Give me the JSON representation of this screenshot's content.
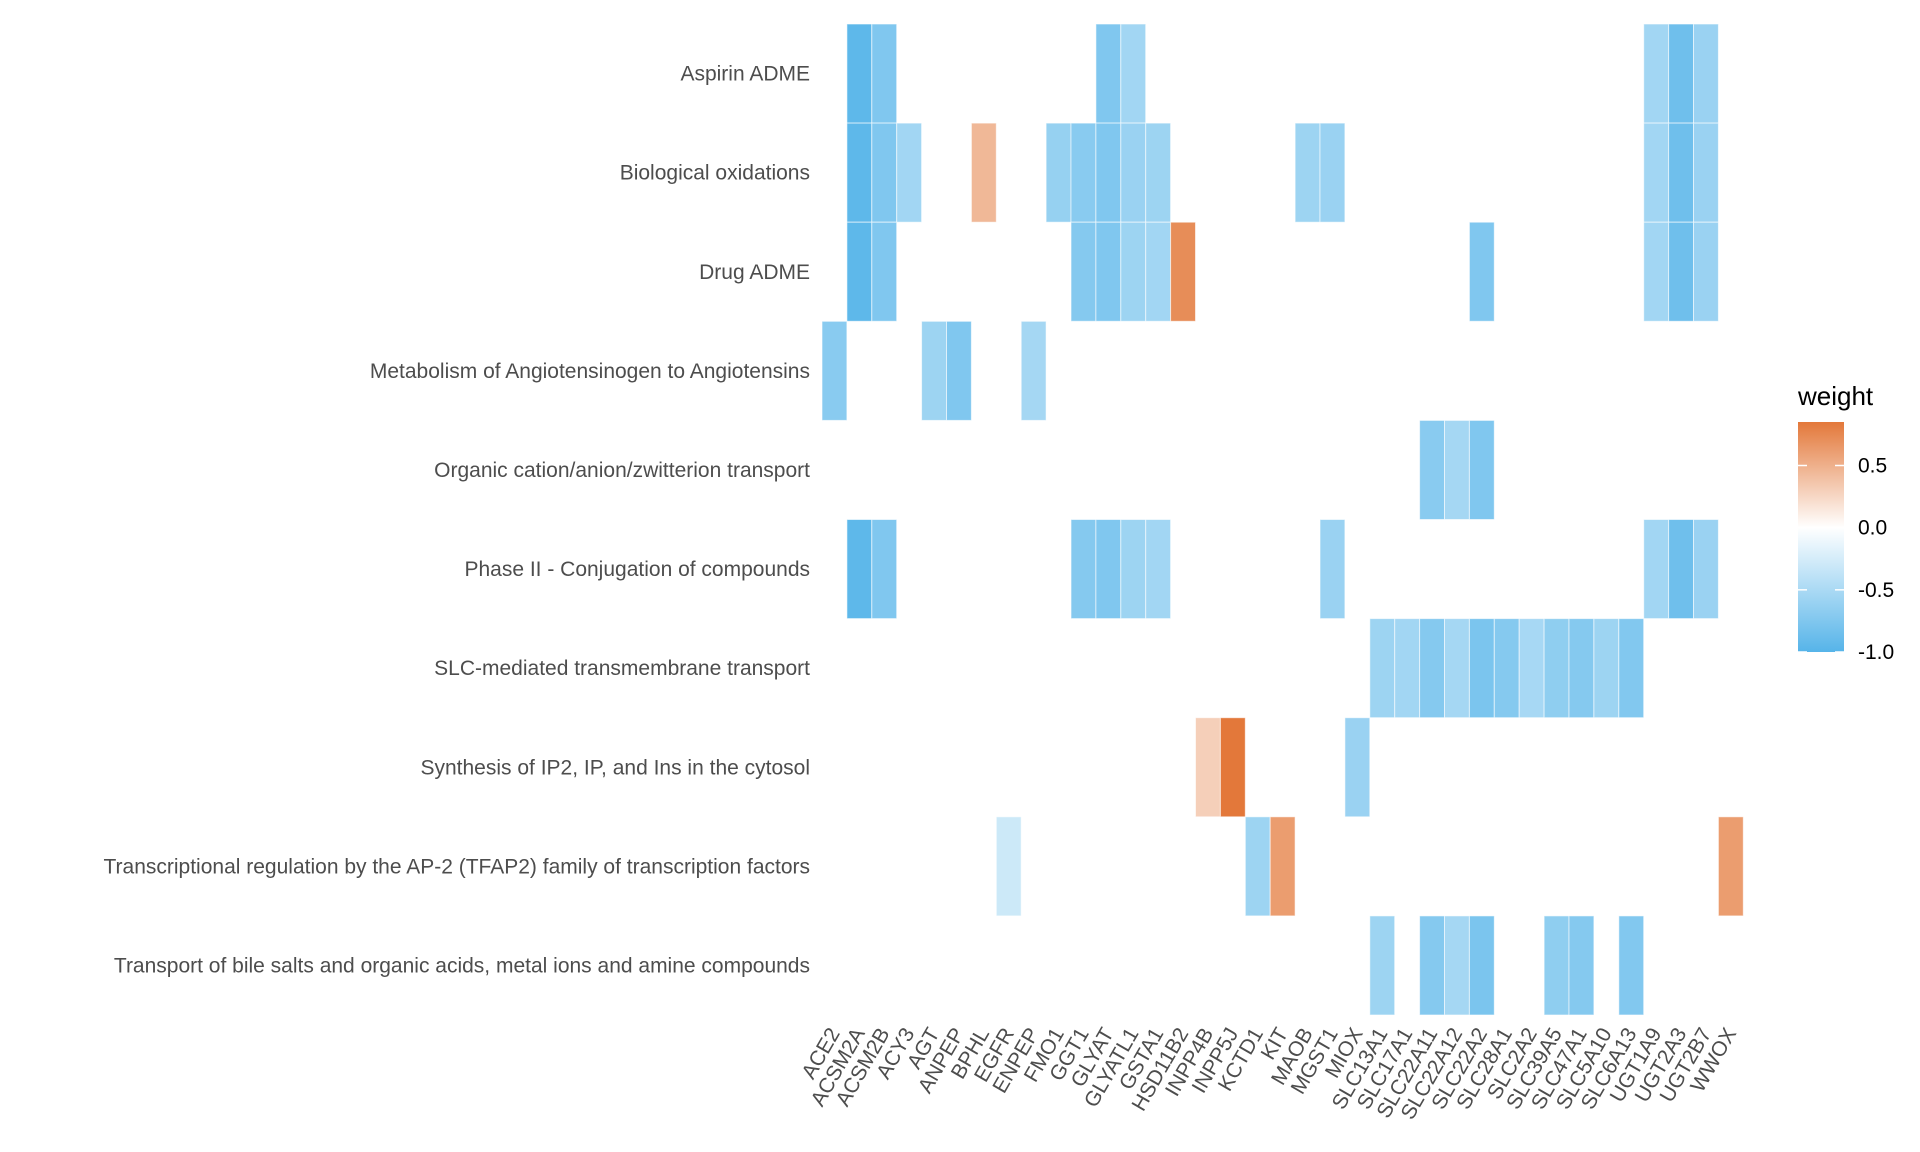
{
  "chart_data": {
    "type": "heatmap",
    "title": "",
    "xlabel": "",
    "ylabel": "",
    "x_categories": [
      "ACE2",
      "ACSM2A",
      "ACSM2B",
      "ACY3",
      "AGT",
      "ANPEP",
      "BPHL",
      "EGFR",
      "ENPEP",
      "FMO1",
      "GGT1",
      "GLYAT",
      "GLYATL1",
      "GSTA1",
      "HSD11B2",
      "INPP4B",
      "INPP5J",
      "KCTD1",
      "KIT",
      "MAOB",
      "MGST1",
      "MIOX",
      "SLC13A1",
      "SLC17A1",
      "SLC22A11",
      "SLC22A12",
      "SLC22A2",
      "SLC28A1",
      "SLC2A2",
      "SLC39A5",
      "SLC47A1",
      "SLC5A10",
      "SLC6A13",
      "UGT1A9",
      "UGT2A3",
      "UGT2B7",
      "WWOX"
    ],
    "y_categories": [
      "Aspirin ADME",
      "Biological oxidations",
      "Drug ADME",
      "Metabolism of Angiotensinogen to Angiotensins",
      "Organic cation/anion/zwitterion transport",
      "Phase II - Conjugation of compounds",
      "SLC-mediated transmembrane transport",
      "Synthesis of IP2, IP, and Ins in the cytosol",
      "Transcriptional regulation by the AP-2 (TFAP2) family of transcription factors",
      "Transport of bile salts and organic acids, metal ions and amine compounds"
    ],
    "cells": [
      {
        "y": "Aspirin ADME",
        "values": {
          "ACSM2A": -0.95,
          "ACSM2B": -0.75,
          "GLYAT": -0.75,
          "GLYATL1": -0.55,
          "UGT1A9": -0.55,
          "UGT2A3": -0.85,
          "UGT2B7": -0.6
        }
      },
      {
        "y": "Biological oxidations",
        "values": {
          "ACSM2A": -0.95,
          "ACSM2B": -0.75,
          "ACY3": -0.55,
          "BPHL": 0.45,
          "FMO1": -0.62,
          "GGT1": -0.7,
          "GLYAT": -0.75,
          "GLYATL1": -0.6,
          "GSTA1": -0.58,
          "MAOB": -0.58,
          "MGST1": -0.6,
          "UGT1A9": -0.55,
          "UGT2A3": -0.85,
          "UGT2B7": -0.6
        }
      },
      {
        "y": "Drug ADME",
        "values": {
          "ACSM2A": -0.95,
          "ACSM2B": -0.75,
          "GGT1": -0.72,
          "GLYAT": -0.75,
          "GLYATL1": -0.58,
          "GSTA1": -0.55,
          "HSD11B2": 0.72,
          "SLC22A2": -0.75,
          "UGT1A9": -0.55,
          "UGT2A3": -0.85,
          "UGT2B7": -0.6
        }
      },
      {
        "y": "Metabolism of Angiotensinogen to Angiotensins",
        "values": {
          "ACE2": -0.7,
          "AGT": -0.58,
          "ANPEP": -0.75,
          "ENPEP": -0.53
        }
      },
      {
        "y": "Organic cation/anion/zwitterion transport",
        "values": {
          "SLC22A11": -0.7,
          "SLC22A12": -0.53,
          "SLC22A2": -0.75
        }
      },
      {
        "y": "Phase II - Conjugation of compounds",
        "values": {
          "ACSM2A": -0.95,
          "ACSM2B": -0.75,
          "GGT1": -0.72,
          "GLYAT": -0.75,
          "GLYATL1": -0.58,
          "GSTA1": -0.55,
          "MGST1": -0.6,
          "UGT1A9": -0.55,
          "UGT2A3": -0.85,
          "UGT2B7": -0.6
        }
      },
      {
        "y": "SLC-mediated transmembrane transport",
        "values": {
          "SLC13A1": -0.58,
          "SLC17A1": -0.55,
          "SLC22A11": -0.72,
          "SLC22A12": -0.53,
          "SLC22A2": -0.78,
          "SLC28A1": -0.72,
          "SLC2A2": -0.52,
          "SLC39A5": -0.66,
          "SLC47A1": -0.72,
          "SLC5A10": -0.58,
          "SLC6A13": -0.74
        }
      },
      {
        "y": "Synthesis of IP2, IP, and Ins in the cytosol",
        "values": {
          "INPP4B": 0.3,
          "INPP5J": 0.85,
          "MIOX": -0.6
        }
      },
      {
        "y": "Transcriptional regulation by the AP-2 (TFAP2) family of transcription factors",
        "values": {
          "EGFR": -0.3,
          "KCTD1": -0.58,
          "KIT": 0.62,
          "WWOX": 0.62
        }
      },
      {
        "y": "Transport of bile salts and organic acids, metal ions and amine compounds",
        "values": {
          "SLC13A1": -0.58,
          "SLC22A11": -0.72,
          "SLC22A12": -0.53,
          "SLC22A2": -0.78,
          "SLC39A5": -0.66,
          "SLC47A1": -0.72,
          "SLC6A13": -0.74
        }
      }
    ],
    "legend": {
      "title": "weight",
      "position": "right",
      "range": [
        -1.0,
        0.85
      ],
      "ticks": [
        0.5,
        0.0,
        -0.5,
        -1.0
      ],
      "tick_labels": [
        "0.5",
        "0.0",
        "-0.5",
        "-1.0"
      ],
      "low_color": "#56B4E9",
      "mid_color": "#FFFFFF",
      "high_color": "#E3783A"
    },
    "grid": false
  }
}
